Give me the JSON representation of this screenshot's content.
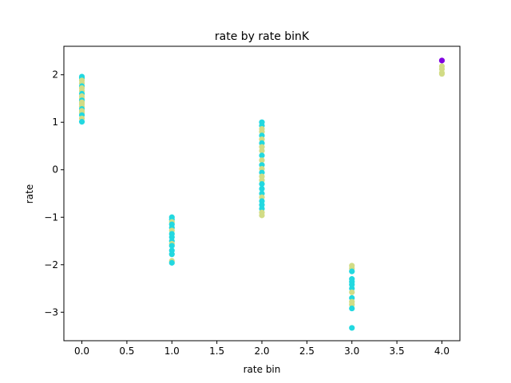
{
  "chart_data": {
    "type": "scatter",
    "title": "rate by rate binK",
    "xlabel": "rate bin",
    "ylabel": "rate",
    "xlim": [
      -0.2,
      4.2
    ],
    "ylim": [
      -3.6,
      2.6
    ],
    "xticks": [
      0.0,
      0.5,
      1.0,
      1.5,
      2.0,
      2.5,
      3.0,
      3.5,
      4.0
    ],
    "xtick_labels": [
      "0.0",
      "0.5",
      "1.0",
      "1.5",
      "2.0",
      "2.5",
      "3.0",
      "3.5",
      "4.0"
    ],
    "yticks": [
      -3,
      -2,
      -1,
      0,
      1,
      2
    ],
    "ytick_labels": [
      "−3",
      "−2",
      "−1",
      "0",
      "1",
      "2"
    ],
    "grid": false,
    "colors": {
      "cyan": "#22d8e0",
      "olive": "#d2dc86",
      "purple": "#8000e0"
    },
    "points": [
      {
        "x": 0,
        "y": 1.96,
        "c": "cyan"
      },
      {
        "x": 0,
        "y": 1.93,
        "c": "cyan"
      },
      {
        "x": 0,
        "y": 1.88,
        "c": "olive"
      },
      {
        "x": 0,
        "y": 1.82,
        "c": "olive"
      },
      {
        "x": 0,
        "y": 1.76,
        "c": "cyan"
      },
      {
        "x": 0,
        "y": 1.72,
        "c": "olive"
      },
      {
        "x": 0,
        "y": 1.66,
        "c": "olive"
      },
      {
        "x": 0,
        "y": 1.6,
        "c": "cyan"
      },
      {
        "x": 0,
        "y": 1.55,
        "c": "olive"
      },
      {
        "x": 0,
        "y": 1.5,
        "c": "olive"
      },
      {
        "x": 0,
        "y": 1.46,
        "c": "cyan"
      },
      {
        "x": 0,
        "y": 1.42,
        "c": "olive"
      },
      {
        "x": 0,
        "y": 1.38,
        "c": "olive"
      },
      {
        "x": 0,
        "y": 1.33,
        "c": "olive"
      },
      {
        "x": 0,
        "y": 1.28,
        "c": "cyan"
      },
      {
        "x": 0,
        "y": 1.24,
        "c": "olive"
      },
      {
        "x": 0,
        "y": 1.2,
        "c": "olive"
      },
      {
        "x": 0,
        "y": 1.15,
        "c": "cyan"
      },
      {
        "x": 0,
        "y": 1.08,
        "c": "olive"
      },
      {
        "x": 0,
        "y": 1.01,
        "c": "cyan"
      },
      {
        "x": 1,
        "y": -1.0,
        "c": "cyan"
      },
      {
        "x": 1,
        "y": -1.05,
        "c": "cyan"
      },
      {
        "x": 1,
        "y": -1.1,
        "c": "olive"
      },
      {
        "x": 1,
        "y": -1.15,
        "c": "cyan"
      },
      {
        "x": 1,
        "y": -1.22,
        "c": "cyan"
      },
      {
        "x": 1,
        "y": -1.28,
        "c": "olive"
      },
      {
        "x": 1,
        "y": -1.35,
        "c": "cyan"
      },
      {
        "x": 1,
        "y": -1.42,
        "c": "cyan"
      },
      {
        "x": 1,
        "y": -1.5,
        "c": "cyan"
      },
      {
        "x": 1,
        "y": -1.56,
        "c": "olive"
      },
      {
        "x": 1,
        "y": -1.6,
        "c": "cyan"
      },
      {
        "x": 1,
        "y": -1.7,
        "c": "cyan"
      },
      {
        "x": 1,
        "y": -1.78,
        "c": "cyan"
      },
      {
        "x": 1,
        "y": -1.92,
        "c": "olive"
      },
      {
        "x": 1,
        "y": -1.96,
        "c": "cyan"
      },
      {
        "x": 2,
        "y": 1.0,
        "c": "cyan"
      },
      {
        "x": 2,
        "y": 0.93,
        "c": "cyan"
      },
      {
        "x": 2,
        "y": 0.86,
        "c": "olive"
      },
      {
        "x": 2,
        "y": 0.8,
        "c": "olive"
      },
      {
        "x": 2,
        "y": 0.72,
        "c": "cyan"
      },
      {
        "x": 2,
        "y": 0.64,
        "c": "olive"
      },
      {
        "x": 2,
        "y": 0.56,
        "c": "cyan"
      },
      {
        "x": 2,
        "y": 0.48,
        "c": "olive"
      },
      {
        "x": 2,
        "y": 0.4,
        "c": "olive"
      },
      {
        "x": 2,
        "y": 0.3,
        "c": "cyan"
      },
      {
        "x": 2,
        "y": 0.2,
        "c": "olive"
      },
      {
        "x": 2,
        "y": 0.1,
        "c": "cyan"
      },
      {
        "x": 2,
        "y": 0.02,
        "c": "olive"
      },
      {
        "x": 2,
        "y": -0.06,
        "c": "cyan"
      },
      {
        "x": 2,
        "y": -0.14,
        "c": "olive"
      },
      {
        "x": 2,
        "y": -0.22,
        "c": "olive"
      },
      {
        "x": 2,
        "y": -0.3,
        "c": "cyan"
      },
      {
        "x": 2,
        "y": -0.4,
        "c": "cyan"
      },
      {
        "x": 2,
        "y": -0.5,
        "c": "cyan"
      },
      {
        "x": 2,
        "y": -0.58,
        "c": "olive"
      },
      {
        "x": 2,
        "y": -0.66,
        "c": "cyan"
      },
      {
        "x": 2,
        "y": -0.74,
        "c": "cyan"
      },
      {
        "x": 2,
        "y": -0.82,
        "c": "cyan"
      },
      {
        "x": 2,
        "y": -0.9,
        "c": "olive"
      },
      {
        "x": 2,
        "y": -0.96,
        "c": "olive"
      },
      {
        "x": 3,
        "y": -2.02,
        "c": "olive"
      },
      {
        "x": 3,
        "y": -2.08,
        "c": "olive"
      },
      {
        "x": 3,
        "y": -2.14,
        "c": "cyan"
      },
      {
        "x": 3,
        "y": -2.3,
        "c": "cyan"
      },
      {
        "x": 3,
        "y": -2.36,
        "c": "cyan"
      },
      {
        "x": 3,
        "y": -2.42,
        "c": "cyan"
      },
      {
        "x": 3,
        "y": -2.5,
        "c": "cyan"
      },
      {
        "x": 3,
        "y": -2.58,
        "c": "olive"
      },
      {
        "x": 3,
        "y": -2.7,
        "c": "cyan"
      },
      {
        "x": 3,
        "y": -2.78,
        "c": "olive"
      },
      {
        "x": 3,
        "y": -2.84,
        "c": "olive"
      },
      {
        "x": 3,
        "y": -2.92,
        "c": "cyan"
      },
      {
        "x": 3,
        "y": -3.33,
        "c": "cyan"
      },
      {
        "x": 4,
        "y": 2.3,
        "c": "purple"
      },
      {
        "x": 4,
        "y": 2.18,
        "c": "olive"
      },
      {
        "x": 4,
        "y": 2.12,
        "c": "olive"
      },
      {
        "x": 4,
        "y": 2.04,
        "c": "olive"
      },
      {
        "x": 4,
        "y": 2.02,
        "c": "olive"
      }
    ]
  }
}
